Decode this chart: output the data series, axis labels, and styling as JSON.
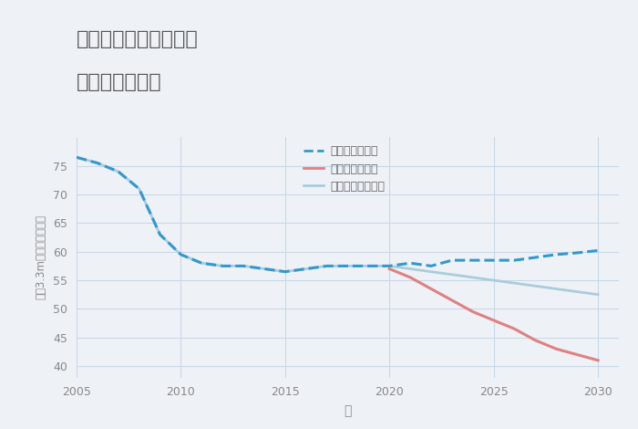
{
  "title_line1": "奈良県奈良市佐紀町の",
  "title_line2": "土地の価格推移",
  "xlabel": "年",
  "ylabel": "坪（3.3m）単価（万円）",
  "background_color": "#eef2f7",
  "plot_background": "#eef2f7",
  "ylim": [
    38,
    80
  ],
  "xlim": [
    2005,
    2031
  ],
  "yticks": [
    40,
    45,
    50,
    55,
    60,
    65,
    70,
    75
  ],
  "xticks": [
    2005,
    2010,
    2015,
    2020,
    2025,
    2030
  ],
  "good_scenario": {
    "label": "グッドシナリオ",
    "color": "#3399cc",
    "x": [
      2005,
      2006,
      2007,
      2008,
      2009,
      2010,
      2011,
      2012,
      2013,
      2014,
      2015,
      2016,
      2017,
      2018,
      2019,
      2020,
      2021,
      2022,
      2023,
      2024,
      2025,
      2026,
      2027,
      2028,
      2029,
      2030
    ],
    "y": [
      76.5,
      75.5,
      74.0,
      71.0,
      63.0,
      59.5,
      58.0,
      57.5,
      57.5,
      57.0,
      56.5,
      57.0,
      57.5,
      57.5,
      57.5,
      57.5,
      58.0,
      57.5,
      58.5,
      58.5,
      58.5,
      58.5,
      59.0,
      59.5,
      59.8,
      60.2
    ],
    "linewidth": 2.2,
    "linestyle": "--"
  },
  "bad_scenario": {
    "label": "バッドシナリオ",
    "color": "#e08080",
    "x": [
      2020,
      2021,
      2022,
      2023,
      2024,
      2025,
      2026,
      2027,
      2028,
      2029,
      2030
    ],
    "y": [
      57.0,
      55.5,
      53.5,
      51.5,
      49.5,
      48.0,
      46.5,
      44.5,
      43.0,
      42.0,
      41.0
    ],
    "linewidth": 2.2,
    "linestyle": "-"
  },
  "normal_scenario": {
    "label": "ノーマルシナリオ",
    "color": "#aaccdd",
    "x": [
      2005,
      2006,
      2007,
      2008,
      2009,
      2010,
      2011,
      2012,
      2013,
      2014,
      2015,
      2016,
      2017,
      2018,
      2019,
      2020,
      2021,
      2022,
      2023,
      2024,
      2025,
      2026,
      2027,
      2028,
      2029,
      2030
    ],
    "y": [
      76.5,
      75.5,
      74.0,
      71.0,
      63.0,
      59.5,
      58.0,
      57.5,
      57.5,
      57.0,
      56.5,
      57.0,
      57.5,
      57.5,
      57.5,
      57.5,
      57.0,
      56.5,
      56.0,
      55.5,
      55.0,
      54.5,
      54.0,
      53.5,
      53.0,
      52.5
    ],
    "linewidth": 2.0,
    "linestyle": "-"
  },
  "grid_color": "#c8d8e8",
  "tick_color": "#888888",
  "title_color": "#555555",
  "legend_label_color": "#666666"
}
